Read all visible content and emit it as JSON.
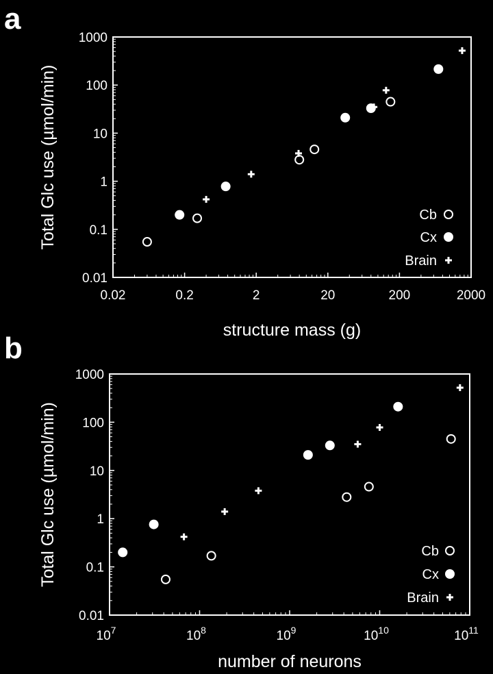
{
  "colors": {
    "background": "#000000",
    "foreground": "#ffffff"
  },
  "chart_data": [
    {
      "panel": "a",
      "type": "scatter",
      "xscale": "log",
      "yscale": "log",
      "xlabel": "structure mass (g)",
      "ylabel": "Total Glc use (µmol/min)",
      "xlim": [
        0.02,
        2000
      ],
      "ylim": [
        0.01,
        1000
      ],
      "xticks": [
        {
          "v": 0.02,
          "label": "0.02"
        },
        {
          "v": 0.2,
          "label": "0.2"
        },
        {
          "v": 2,
          "label": "2"
        },
        {
          "v": 20,
          "label": "20"
        },
        {
          "v": 200,
          "label": "200"
        },
        {
          "v": 2000,
          "label": "2000"
        }
      ],
      "yticks": [
        {
          "v": 0.01,
          "label": "0.01"
        },
        {
          "v": 0.1,
          "label": "0.1"
        },
        {
          "v": 1,
          "label": "1"
        },
        {
          "v": 10,
          "label": "10"
        },
        {
          "v": 100,
          "label": "100"
        },
        {
          "v": 1000,
          "label": "1000"
        }
      ],
      "legend": {
        "position": "bottom-right"
      },
      "series": [
        {
          "name": "Cb",
          "marker": "open-circle",
          "points": [
            [
              0.06,
              0.055
            ],
            [
              0.3,
              0.17
            ],
            [
              8,
              2.8
            ],
            [
              13,
              4.6
            ],
            [
              150,
              45
            ]
          ]
        },
        {
          "name": "Cx",
          "marker": "filled-circle",
          "points": [
            [
              0.17,
              0.2
            ],
            [
              0.75,
              0.78
            ],
            [
              35,
              21
            ],
            [
              80,
              33
            ],
            [
              700,
              215
            ]
          ]
        },
        {
          "name": "Brain",
          "marker": "plus",
          "points": [
            [
              0.4,
              0.42
            ],
            [
              1.7,
              1.4
            ],
            [
              7.8,
              3.8
            ],
            [
              88,
              35
            ],
            [
              130,
              78
            ],
            [
              1500,
              520
            ]
          ]
        }
      ]
    },
    {
      "panel": "b",
      "type": "scatter",
      "xscale": "log",
      "yscale": "log",
      "xlabel": "number of neurons",
      "ylabel": "Total Glc use (µmol/min)",
      "xlim": [
        10000000,
        100000000000
      ],
      "ylim": [
        0.01,
        1000
      ],
      "xticks": [
        {
          "v": 10000000,
          "base": "10",
          "exp": "7"
        },
        {
          "v": 100000000,
          "base": "10",
          "exp": "8"
        },
        {
          "v": 1000000000,
          "base": "10",
          "exp": "9"
        },
        {
          "v": 10000000000,
          "base": "10",
          "exp": "10"
        },
        {
          "v": 100000000000,
          "base": "10",
          "exp": "11"
        }
      ],
      "yticks": [
        {
          "v": 0.01,
          "label": "0.01"
        },
        {
          "v": 0.1,
          "label": "0.1"
        },
        {
          "v": 1,
          "label": "1"
        },
        {
          "v": 10,
          "label": "10"
        },
        {
          "v": 100,
          "label": "100"
        },
        {
          "v": 1000,
          "label": "1000"
        }
      ],
      "legend": {
        "position": "bottom-right"
      },
      "series": [
        {
          "name": "Cb",
          "marker": "open-circle",
          "points": [
            [
              42000000,
              0.055
            ],
            [
              135000000,
              0.17
            ],
            [
              4300000000,
              2.8
            ],
            [
              7600000000,
              4.6
            ],
            [
              62000000000,
              45
            ]
          ]
        },
        {
          "name": "Cx",
          "marker": "filled-circle",
          "points": [
            [
              14000000,
              0.2
            ],
            [
              31000000,
              0.76
            ],
            [
              1600000000,
              21
            ],
            [
              2800000000,
              33
            ],
            [
              16000000000,
              210
            ]
          ]
        },
        {
          "name": "Brain",
          "marker": "plus",
          "points": [
            [
              67000000,
              0.42
            ],
            [
              190000000,
              1.4
            ],
            [
              450000000,
              3.8
            ],
            [
              5700000000,
              35
            ],
            [
              10000000000,
              78
            ],
            [
              78000000000,
              520
            ]
          ]
        }
      ]
    }
  ]
}
